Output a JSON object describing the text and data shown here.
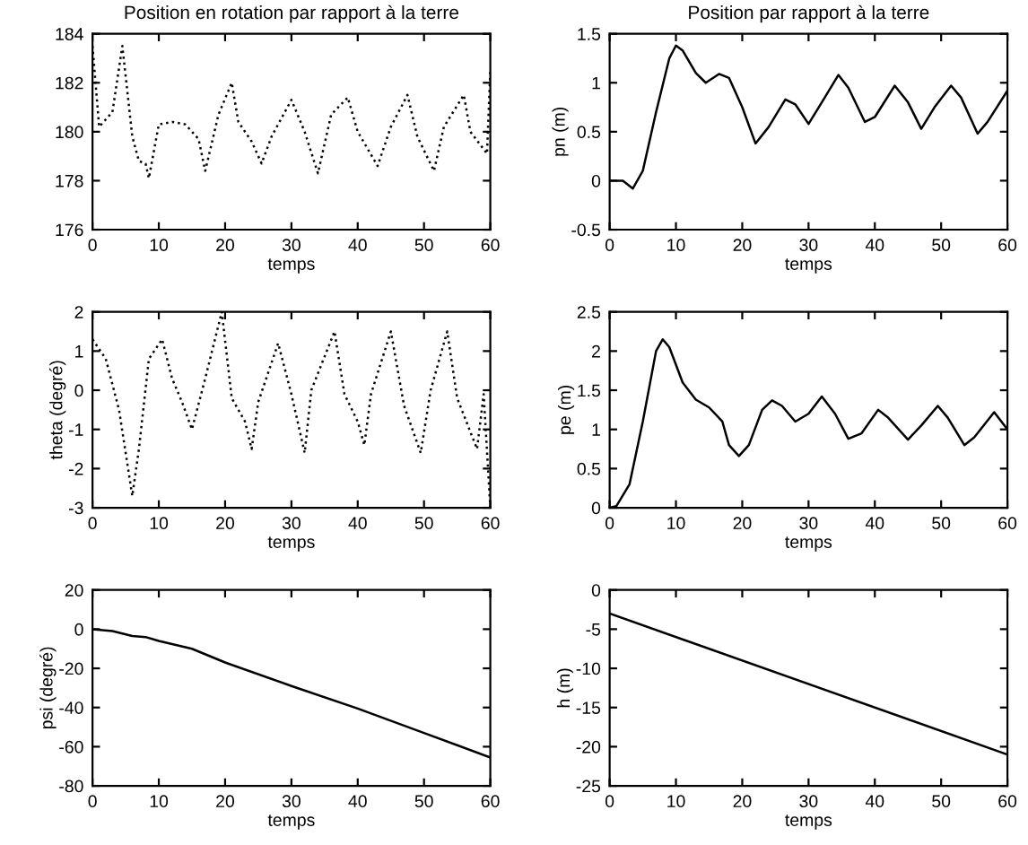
{
  "chart_data": [
    {
      "type": "line",
      "title": "Position en rotation par rapport à la terre",
      "xlabel": "temps",
      "xlim": [
        0,
        60
      ],
      "xticks": [
        0,
        10,
        20,
        30,
        40,
        50,
        60
      ],
      "ylim": [
        176,
        184
      ],
      "yticks": [
        176,
        178,
        180,
        182,
        184
      ],
      "line_style": "dotted",
      "grid": false,
      "series": [
        {
          "color": "#000000",
          "x": [
            0,
            1,
            3,
            4.5,
            6,
            7,
            8,
            8.5,
            10,
            12,
            14,
            16,
            17,
            19,
            21,
            22,
            24,
            25.5,
            27,
            30,
            32,
            34,
            36,
            38.5,
            40,
            43,
            45,
            47.5,
            49,
            51.5,
            53,
            56,
            57,
            59.5,
            60
          ],
          "values": [
            183.5,
            180.2,
            180.8,
            183.5,
            179.8,
            178.8,
            178.7,
            178.1,
            180.3,
            180.4,
            180.3,
            179.7,
            178.4,
            180.7,
            182,
            180.4,
            179.6,
            178.7,
            179.8,
            181.3,
            180,
            178.3,
            180.7,
            181.4,
            180,
            178.6,
            180.2,
            181.5,
            179.8,
            178.4,
            180.2,
            181.5,
            180,
            179.1,
            182.5
          ]
        }
      ]
    },
    {
      "type": "line",
      "title": "Position par rapport à la terre",
      "xlabel": "temps",
      "ylabel": "pn (m)",
      "xlim": [
        0,
        60
      ],
      "xticks": [
        0,
        10,
        20,
        30,
        40,
        50,
        60
      ],
      "ylim": [
        -0.5,
        1.5
      ],
      "yticks": [
        -0.5,
        0,
        0.5,
        1,
        1.5
      ],
      "line_style": "solid",
      "grid": false,
      "series": [
        {
          "color": "#000000",
          "x": [
            0,
            2,
            3.5,
            5,
            7,
            9,
            10,
            11,
            13,
            14.5,
            16.5,
            18,
            20,
            22,
            24,
            26.5,
            28,
            30,
            32,
            34.5,
            36,
            38.5,
            40,
            43,
            45,
            47,
            49,
            51.5,
            53,
            55.5,
            57,
            60
          ],
          "values": [
            0,
            0,
            -0.08,
            0.1,
            0.7,
            1.25,
            1.38,
            1.33,
            1.1,
            1.0,
            1.09,
            1.05,
            0.75,
            0.38,
            0.55,
            0.83,
            0.78,
            0.58,
            0.8,
            1.08,
            0.95,
            0.6,
            0.65,
            0.97,
            0.8,
            0.53,
            0.75,
            0.97,
            0.85,
            0.48,
            0.6,
            0.92
          ]
        }
      ]
    },
    {
      "type": "line",
      "xlabel": "temps",
      "ylabel": "theta (degré)",
      "xlim": [
        0,
        60
      ],
      "xticks": [
        0,
        10,
        20,
        30,
        40,
        50,
        60
      ],
      "ylim": [
        -3,
        2
      ],
      "yticks": [
        -3,
        -2,
        -1,
        0,
        1,
        2
      ],
      "line_style": "dotted",
      "grid": false,
      "series": [
        {
          "color": "#000000",
          "x": [
            0,
            2,
            4,
            6,
            7,
            8.5,
            10.5,
            12,
            13.5,
            15,
            17,
            19.5,
            21,
            23,
            24,
            25,
            28,
            30,
            32,
            33,
            36.5,
            38,
            40,
            41,
            42,
            45,
            47,
            49.5,
            51,
            53.5,
            55,
            58,
            59,
            60
          ],
          "values": [
            1.3,
            0.8,
            -0.5,
            -2.7,
            -1.5,
            0.8,
            1.3,
            0.3,
            -0.3,
            -1,
            0.3,
            2,
            -0.2,
            -0.8,
            -1.5,
            -0.3,
            1.2,
            -0.1,
            -1.6,
            0,
            1.5,
            -0.1,
            -0.8,
            -1.4,
            -0.1,
            1.5,
            -0.4,
            -1.6,
            0,
            1.5,
            -0.2,
            -1.5,
            -0.1,
            -3
          ]
        }
      ]
    },
    {
      "type": "line",
      "xlabel": "temps",
      "ylabel": "pe (m)",
      "xlim": [
        0,
        60
      ],
      "xticks": [
        0,
        10,
        20,
        30,
        40,
        50,
        60
      ],
      "ylim": [
        0,
        2.5
      ],
      "yticks": [
        0,
        0.5,
        1,
        1.5,
        2,
        2.5
      ],
      "line_style": "solid",
      "grid": false,
      "series": [
        {
          "color": "#000000",
          "x": [
            0,
            1,
            3,
            5,
            7,
            8,
            9,
            11,
            13,
            15,
            17,
            18,
            19.5,
            21,
            23,
            24.5,
            26,
            28,
            30,
            32,
            34,
            36,
            38,
            40.5,
            42,
            45,
            47,
            49.5,
            51,
            53.5,
            55,
            58,
            60
          ],
          "values": [
            0,
            0.02,
            0.3,
            1.1,
            2.0,
            2.15,
            2.05,
            1.6,
            1.38,
            1.28,
            1.1,
            0.8,
            0.66,
            0.8,
            1.25,
            1.37,
            1.3,
            1.1,
            1.2,
            1.42,
            1.2,
            0.88,
            0.95,
            1.25,
            1.15,
            0.87,
            1.05,
            1.3,
            1.15,
            0.8,
            0.9,
            1.22,
            1.0
          ]
        }
      ]
    },
    {
      "type": "line",
      "xlabel": "temps",
      "ylabel": "psi (degré)",
      "xlim": [
        0,
        60
      ],
      "xticks": [
        0,
        10,
        20,
        30,
        40,
        50,
        60
      ],
      "ylim": [
        -80,
        20
      ],
      "yticks": [
        -80,
        -60,
        -40,
        -20,
        0,
        20
      ],
      "line_style": "solid",
      "grid": false,
      "series": [
        {
          "color": "#000000",
          "x": [
            0,
            3,
            6,
            8,
            10,
            15,
            20,
            30,
            40,
            50,
            60
          ],
          "values": [
            0,
            -1,
            -3.5,
            -4,
            -6,
            -10,
            -17,
            -29,
            -40.5,
            -53,
            -65.5
          ]
        }
      ]
    },
    {
      "type": "line",
      "xlabel": "temps",
      "ylabel": "h (m)",
      "xlim": [
        0,
        60
      ],
      "xticks": [
        0,
        10,
        20,
        30,
        40,
        50,
        60
      ],
      "ylim": [
        -25,
        0
      ],
      "yticks": [
        -25,
        -20,
        -15,
        -10,
        -5,
        0
      ],
      "line_style": "solid",
      "grid": false,
      "series": [
        {
          "color": "#000000",
          "x": [
            0,
            60
          ],
          "values": [
            -3,
            -21
          ]
        }
      ]
    }
  ]
}
